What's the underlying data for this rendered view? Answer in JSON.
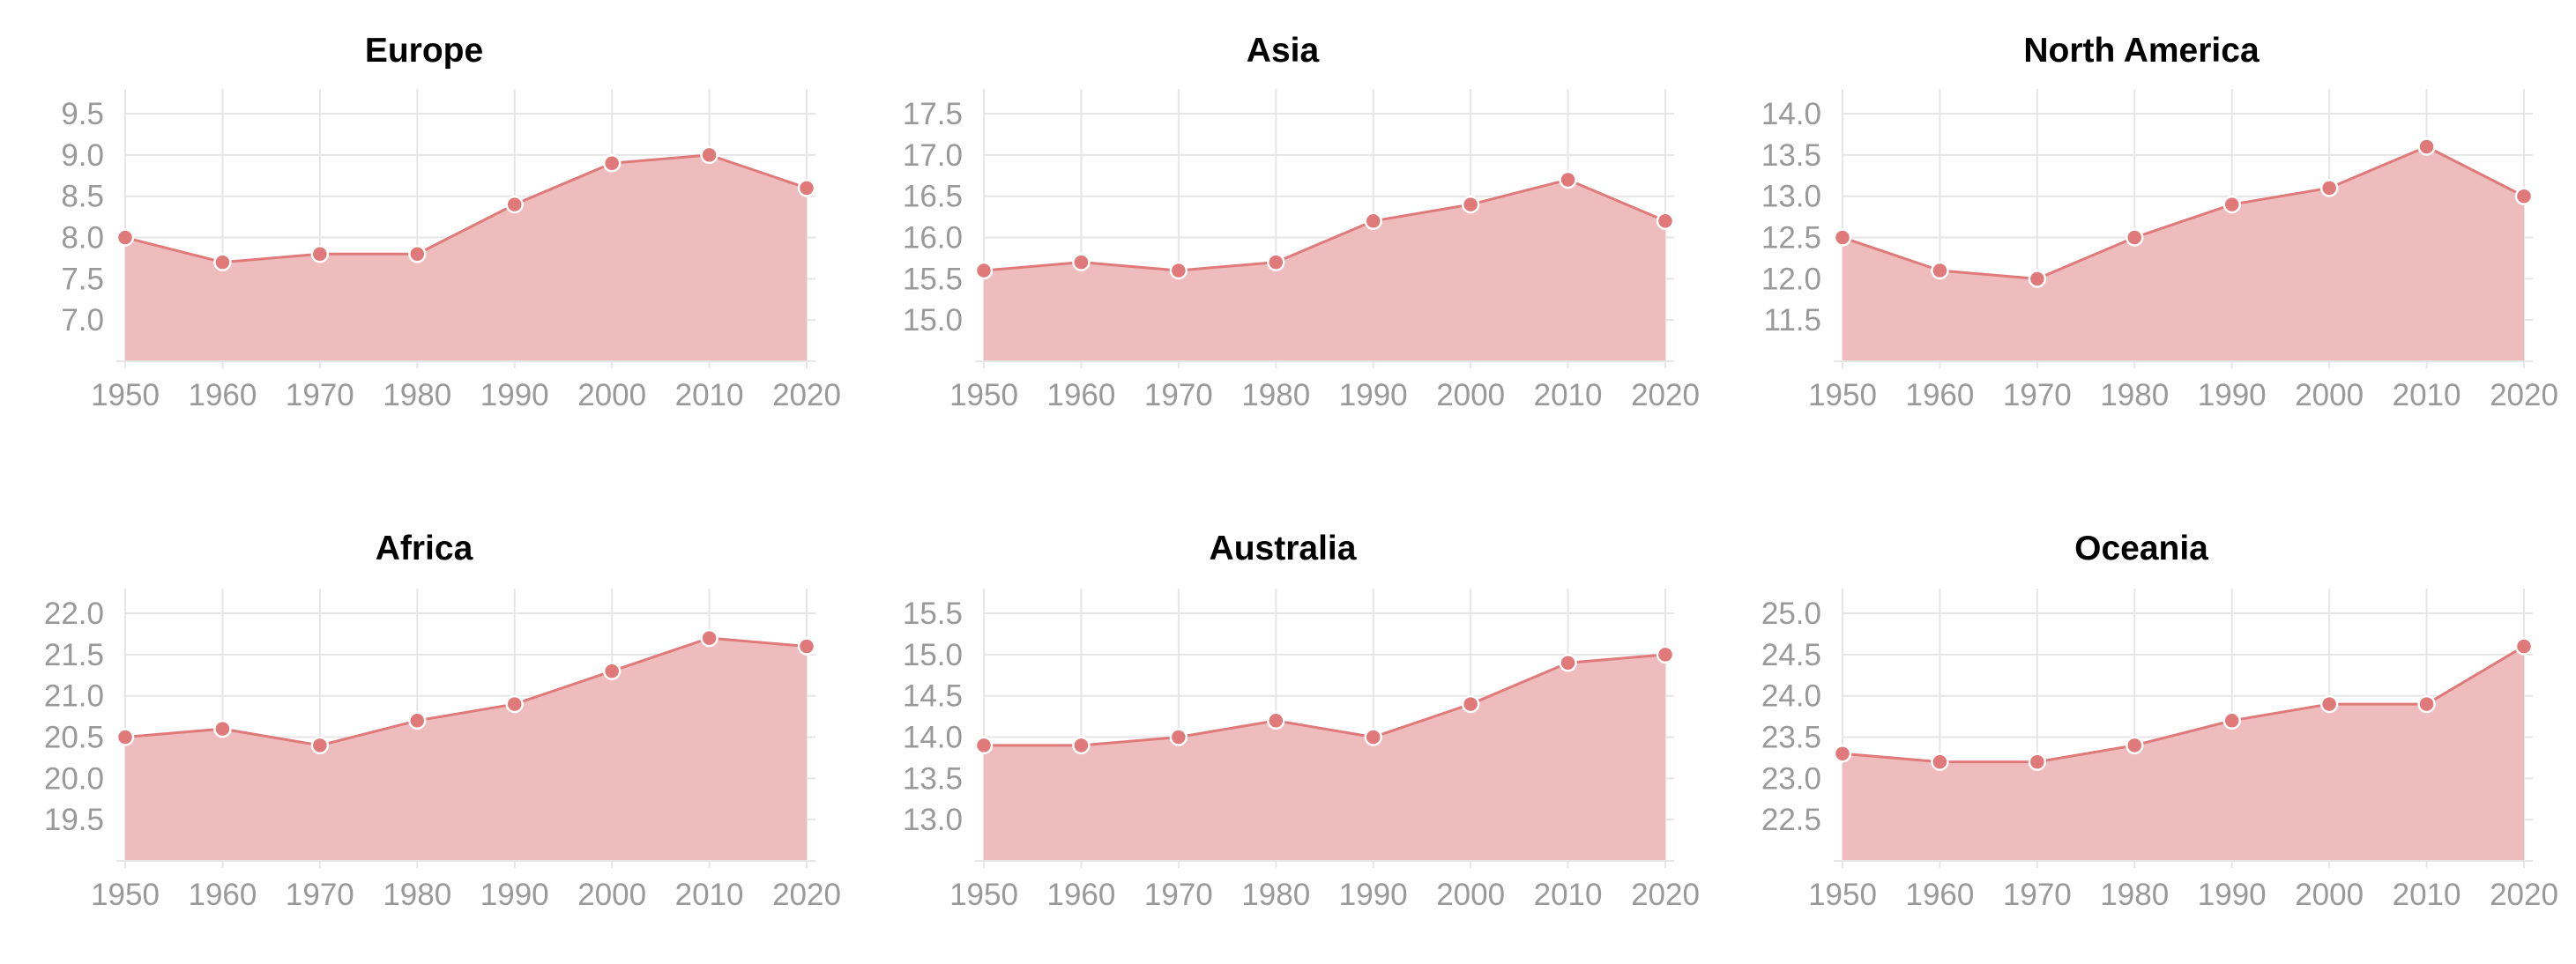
{
  "chart_data": [
    {
      "type": "area",
      "title": "Europe",
      "x": [
        1950,
        1960,
        1970,
        1980,
        1990,
        2000,
        2010,
        2020
      ],
      "y": [
        8.0,
        7.7,
        7.8,
        7.8,
        8.4,
        8.9,
        9.0,
        8.6
      ],
      "xticks": [
        "1950",
        "1960",
        "1970",
        "1980",
        "1990",
        "2000",
        "2010",
        "2020"
      ],
      "yticks": [
        "7.0",
        "7.5",
        "8.0",
        "8.5",
        "9.0",
        "9.5"
      ],
      "ylim": [
        6.5,
        9.65
      ],
      "grid": true,
      "color": "#e07a7a",
      "fill_color": "#eebcbc"
    },
    {
      "type": "area",
      "title": "Asia",
      "x": [
        1950,
        1960,
        1970,
        1980,
        1990,
        2000,
        2010,
        2020
      ],
      "y": [
        15.6,
        15.7,
        15.6,
        15.7,
        16.2,
        16.4,
        16.7,
        16.2
      ],
      "xticks": [
        "1950",
        "1960",
        "1970",
        "1980",
        "1990",
        "2000",
        "2010",
        "2020"
      ],
      "yticks": [
        "15.0",
        "15.5",
        "16.0",
        "16.5",
        "17.0",
        "17.5"
      ],
      "ylim": [
        14.5,
        17.65
      ],
      "grid": true,
      "color": "#e07a7a",
      "fill_color": "#eebcbc"
    },
    {
      "type": "area",
      "title": "North America",
      "x": [
        1950,
        1960,
        1970,
        1980,
        1990,
        2000,
        2010,
        2020
      ],
      "y": [
        12.5,
        12.1,
        12.0,
        12.5,
        12.9,
        13.1,
        13.6,
        13.0
      ],
      "xticks": [
        "1950",
        "1960",
        "1970",
        "1980",
        "1990",
        "2000",
        "2010",
        "2020"
      ],
      "yticks": [
        "11.5",
        "12.0",
        "12.5",
        "13.0",
        "13.5",
        "14.0"
      ],
      "ylim": [
        11.0,
        14.15
      ],
      "grid": true,
      "color": "#e07a7a",
      "fill_color": "#eebcbc"
    },
    {
      "type": "area",
      "title": "Africa",
      "x": [
        1950,
        1960,
        1970,
        1980,
        1990,
        2000,
        2010,
        2020
      ],
      "y": [
        20.5,
        20.6,
        20.4,
        20.7,
        20.9,
        21.3,
        21.7,
        21.6
      ],
      "xticks": [
        "1950",
        "1960",
        "1970",
        "1980",
        "1990",
        "2000",
        "2010",
        "2020"
      ],
      "yticks": [
        "19.5",
        "20.0",
        "20.5",
        "21.0",
        "21.5",
        "22.0"
      ],
      "ylim": [
        19.0,
        22.15
      ],
      "grid": true,
      "color": "#e07a7a",
      "fill_color": "#eebcbc"
    },
    {
      "type": "area",
      "title": "Australia",
      "x": [
        1950,
        1960,
        1970,
        1980,
        1990,
        2000,
        2010,
        2020
      ],
      "y": [
        13.9,
        13.9,
        14.0,
        14.2,
        14.0,
        14.4,
        14.9,
        15.0
      ],
      "xticks": [
        "1950",
        "1960",
        "1970",
        "1980",
        "1990",
        "2000",
        "2010",
        "2020"
      ],
      "yticks": [
        "13.0",
        "13.5",
        "14.0",
        "14.5",
        "15.0",
        "15.5"
      ],
      "ylim": [
        12.5,
        15.65
      ],
      "grid": true,
      "color": "#e07a7a",
      "fill_color": "#eebcbc"
    },
    {
      "type": "area",
      "title": "Oceania",
      "x": [
        1950,
        1960,
        1970,
        1980,
        1990,
        2000,
        2010,
        2020
      ],
      "y": [
        23.3,
        23.2,
        23.2,
        23.4,
        23.7,
        23.9,
        23.9,
        24.6
      ],
      "xticks": [
        "1950",
        "1960",
        "1970",
        "1980",
        "1990",
        "2000",
        "2010",
        "2020"
      ],
      "yticks": [
        "22.5",
        "23.0",
        "23.5",
        "24.0",
        "24.5",
        "25.0"
      ],
      "ylim": [
        22.0,
        25.15
      ],
      "grid": true,
      "color": "#e07a7a",
      "fill_color": "#eebcbc"
    }
  ]
}
